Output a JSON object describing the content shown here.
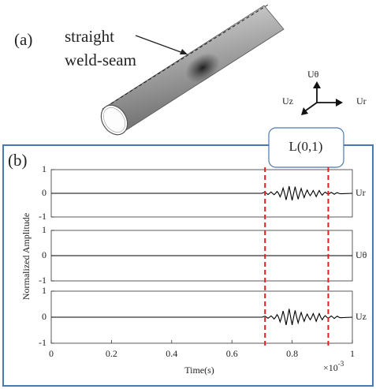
{
  "figure": {
    "panel_a": "(a)",
    "annotation_line1": "straight",
    "annotation_line2": "weld-seam",
    "coord_labels": {
      "up": "Uθ",
      "left": "Uz",
      "right": "Ur"
    },
    "panel_b": "(b)",
    "mode_label": "L(0,1)",
    "ylabel": "Normalized Amplitude",
    "xlabel": "Time(s)",
    "x_multiplier": {
      "base": "×10",
      "exponent": "-3"
    },
    "markers": [
      0.71,
      0.92
    ],
    "marker_color": "#e02020"
  },
  "chart_data": [
    {
      "type": "line",
      "xlim": [
        0,
        1
      ],
      "ylim": [
        -1,
        1
      ],
      "yticks": [
        -1,
        0,
        1
      ],
      "x": [
        0,
        0.7,
        0.705,
        0.71,
        0.715,
        0.72,
        0.725,
        0.73,
        0.735,
        0.74,
        0.745,
        0.75,
        0.755,
        0.76,
        0.765,
        0.77,
        0.775,
        0.78,
        0.785,
        0.79,
        0.795,
        0.8,
        0.805,
        0.81,
        0.815,
        0.82,
        0.825,
        0.83,
        0.835,
        0.84,
        0.845,
        0.85,
        0.855,
        0.86,
        0.865,
        0.87,
        0.875,
        0.88,
        0.885,
        0.89,
        0.895,
        0.9,
        0.905,
        0.91,
        0.915,
        0.92,
        0.925,
        0.93,
        0.935,
        0.94,
        0.945,
        0.95,
        0.955,
        0.96,
        1
      ],
      "series": [
        {
          "name": "Ur",
          "color": "#000000",
          "values": [
            0,
            0,
            0.03,
            0.05,
            0,
            -0.05,
            0,
            0.06,
            0,
            -0.06,
            0,
            0.08,
            0,
            -0.15,
            0,
            0.22,
            0,
            -0.28,
            0,
            0.3,
            0,
            -0.3,
            0,
            0.28,
            0,
            -0.25,
            0,
            0.2,
            0,
            -0.18,
            0,
            0.14,
            0,
            -0.1,
            0,
            0.12,
            0,
            -0.14,
            0,
            0.12,
            0,
            -0.08,
            0,
            0.05,
            0,
            -0.03,
            0,
            0.04,
            0,
            -0.04,
            0,
            0.03,
            0,
            -0.02,
            0
          ]
        }
      ]
    },
    {
      "type": "line",
      "xlim": [
        0,
        1
      ],
      "ylim": [
        -1,
        1
      ],
      "yticks": [
        -1,
        0,
        1
      ],
      "x": [
        0,
        1
      ],
      "series": [
        {
          "name": "Uθ",
          "color": "#000000",
          "values": [
            0,
            0
          ]
        }
      ]
    },
    {
      "type": "line",
      "xlim": [
        0,
        1
      ],
      "ylim": [
        -1,
        1
      ],
      "yticks": [
        -1,
        0,
        1
      ],
      "xticks": [
        0,
        0.2,
        0.4,
        0.6,
        0.8,
        1
      ],
      "x": [
        0,
        0.7,
        0.705,
        0.71,
        0.715,
        0.72,
        0.725,
        0.73,
        0.735,
        0.74,
        0.745,
        0.75,
        0.755,
        0.76,
        0.765,
        0.77,
        0.775,
        0.78,
        0.785,
        0.79,
        0.795,
        0.8,
        0.805,
        0.81,
        0.815,
        0.82,
        0.825,
        0.83,
        0.835,
        0.84,
        0.845,
        0.85,
        0.855,
        0.86,
        0.865,
        0.87,
        0.875,
        0.88,
        0.885,
        0.89,
        0.895,
        0.9,
        0.905,
        0.91,
        0.915,
        0.92,
        0.925,
        0.93,
        0.935,
        0.94,
        0.945,
        0.95,
        0.955,
        0.96,
        1
      ],
      "series": [
        {
          "name": "Uz",
          "color": "#000000",
          "values": [
            0,
            0,
            0.02,
            0.04,
            0,
            -0.04,
            0,
            0.05,
            0,
            -0.07,
            0,
            0.1,
            0,
            -0.18,
            0,
            0.24,
            0,
            -0.3,
            0,
            0.32,
            0,
            -0.3,
            0,
            0.26,
            0,
            -0.22,
            0,
            0.18,
            0,
            -0.16,
            0,
            0.12,
            0,
            -0.1,
            0,
            0.14,
            0,
            -0.16,
            0,
            0.14,
            0,
            -0.1,
            0,
            0.06,
            0,
            -0.04,
            0,
            0.05,
            0,
            -0.05,
            0,
            0.04,
            0,
            -0.02,
            0
          ]
        }
      ]
    }
  ]
}
